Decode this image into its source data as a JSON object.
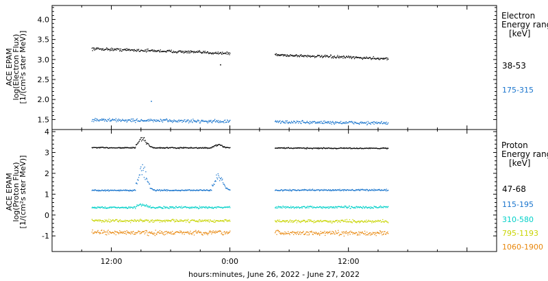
{
  "xlabel": "hours:minutes, June 26, 2022 - June 27, 2022",
  "x_ticks": [
    "12:00",
    "0:00",
    "12:00"
  ],
  "chart_data": [
    {
      "type": "scatter",
      "panel": "electron",
      "ylabel_lines": [
        "ACE EPAM",
        "log(Electron Flux)",
        "[1/(cm²s ster MeV)]"
      ],
      "ylim": [
        1.25,
        4.35
      ],
      "y_ticks": [
        "1.5",
        "2.0",
        "2.5",
        "3.0",
        "3.5",
        "4.0"
      ],
      "xlim_hours": [
        6,
        51
      ],
      "data_gaps_hours": [
        [
          24,
          28.5
        ],
        [
          40,
          51
        ]
      ],
      "legend_title_lines": [
        "Electron",
        "Energy ranges",
        "[keV]"
      ],
      "series": [
        {
          "name": "38-53",
          "color": "#000000",
          "start": 3.28,
          "end": 3.03,
          "noise": 0.05,
          "outliers": [
            {
              "x": 23.0,
              "y": 2.88
            }
          ]
        },
        {
          "name": "175-315",
          "color": "#1874cd",
          "start": 1.5,
          "end": 1.42,
          "noise": 0.06,
          "outliers": [
            {
              "x": 16.0,
              "y": 1.97
            }
          ]
        }
      ]
    },
    {
      "type": "scatter",
      "panel": "proton",
      "ylabel_lines": [
        "ACE EPAM",
        "log(Proton Flux)",
        "[1/(cm²s ster MeV)]"
      ],
      "ylim": [
        -1.75,
        4.1
      ],
      "y_ticks": [
        "-1",
        "0",
        "1",
        "2",
        "3",
        "4"
      ],
      "xlim_hours": [
        6,
        51
      ],
      "data_gaps_hours": [
        [
          24,
          28.5
        ],
        [
          40,
          51
        ]
      ],
      "legend_title_lines": [
        "Proton",
        "Energy ranges",
        "[keV]"
      ],
      "series": [
        {
          "name": "47-68",
          "color": "#000000",
          "start": 3.25,
          "end": 3.22,
          "noise": 0.04,
          "spikes": [
            {
              "x": 14.8,
              "h": 0.45
            },
            {
              "x": 22.5,
              "h": 0.15
            }
          ]
        },
        {
          "name": "115-195",
          "color": "#1874cd",
          "start": 1.2,
          "end": 1.22,
          "noise": 0.05,
          "spikes": [
            {
              "x": 14.8,
              "h": 1.1
            },
            {
              "x": 22.5,
              "h": 0.7
            }
          ]
        },
        {
          "name": "310-580",
          "color": "#00d0c8",
          "start": 0.38,
          "end": 0.4,
          "noise": 0.08,
          "spikes": [
            {
              "x": 14.8,
              "h": 0.15
            }
          ]
        },
        {
          "name": "795-1193",
          "color": "#c8d400",
          "start": -0.25,
          "end": -0.28,
          "noise": 0.1,
          "spikes": []
        },
        {
          "name": "1060-1900",
          "color": "#e8860a",
          "start": -0.82,
          "end": -0.85,
          "noise": 0.16,
          "spikes": []
        }
      ]
    }
  ]
}
